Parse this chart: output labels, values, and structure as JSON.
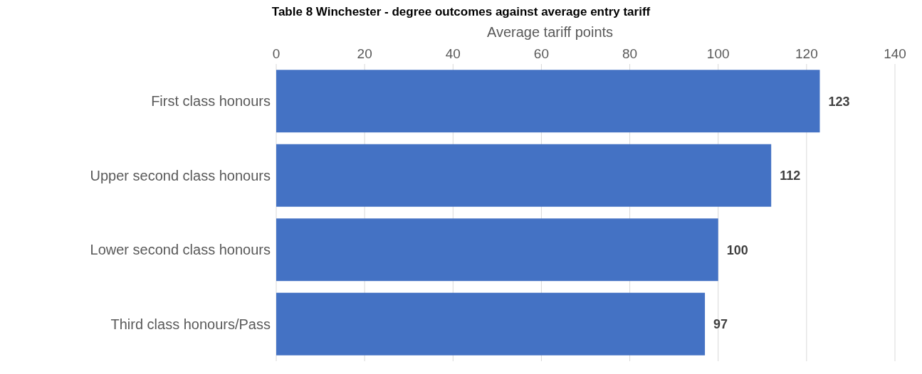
{
  "chart_data": {
    "type": "bar",
    "orientation": "horizontal",
    "title": "Table 8 Winchester - degree outcomes against average entry tariff",
    "xlabel": "Average tariff points",
    "categories": [
      "First class honours",
      "Upper second class honours",
      "Lower second class honours",
      "Third class honours/Pass"
    ],
    "values": [
      123,
      112,
      100,
      97
    ],
    "color": "#4472c4",
    "data_labels": true,
    "xlim": [
      0,
      140
    ],
    "xticks": [
      0,
      20,
      40,
      60,
      80,
      100,
      120,
      140
    ],
    "grid": "x"
  }
}
